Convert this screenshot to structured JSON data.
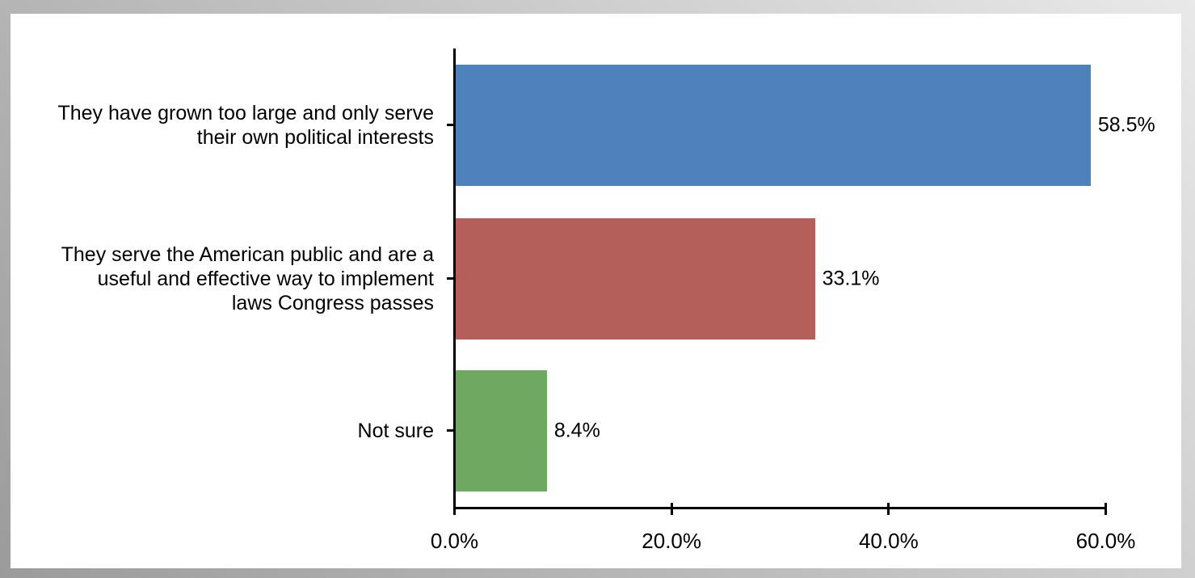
{
  "frame": {
    "background_gradient": [
      "#e9e9e9",
      "#9b9b9b"
    ],
    "panel_color": "#ffffff",
    "axis_color": "#000000",
    "text_color": "#000000"
  },
  "chart_data": {
    "type": "bar",
    "orientation": "horizontal",
    "title": "",
    "xlabel": "",
    "ylabel": "",
    "categories": [
      "They have grown too large and only serve their own political interests",
      "They serve the American public and are a useful and effective way to implement laws Congress passes",
      "Not sure"
    ],
    "label_lines": [
      [
        "They have grown too large and only serve",
        "their own political interests"
      ],
      [
        "They serve the American public and are a",
        "useful and effective way to implement",
        "laws Congress passes"
      ],
      [
        "Not sure"
      ]
    ],
    "values": [
      58.5,
      33.1,
      8.4
    ],
    "value_labels": [
      "58.5%",
      "33.1%",
      "8.4%"
    ],
    "bar_colors": [
      "#4f81bd",
      "#b45f5a",
      "#6fa860"
    ],
    "xlim": [
      0,
      60
    ],
    "x_ticks": [
      0,
      20,
      40,
      60
    ],
    "x_tick_labels": [
      "0.0%",
      "20.0%",
      "40.0%",
      "60.0%"
    ],
    "grid": false,
    "legend": false
  }
}
